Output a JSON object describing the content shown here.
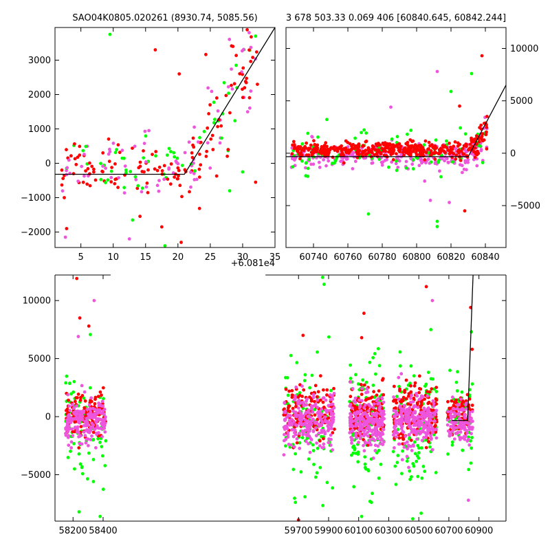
{
  "chart_data": [
    {
      "type": "scatter",
      "title": "SAO04K0805.020261 (8930.74, 5085.56)",
      "x_offset_label": "+6.081e4",
      "xlim": [
        1,
        35
      ],
      "ylim": [
        -2450,
        3950
      ],
      "x_ticks": [
        "5",
        "10",
        "15",
        "20",
        "25",
        "30",
        "35"
      ],
      "y_ticks": [
        "−2000",
        "−1000",
        "0",
        "1000",
        "2000",
        "3000"
      ],
      "y_axis_side": "left",
      "series_colors": {
        "red": "#ff0000",
        "green": "#00ff00",
        "pink": "#ee55dd"
      },
      "model_line": {
        "x": [
          1,
          21,
          35
        ],
        "y": [
          -320,
          -320,
          3950
        ]
      },
      "highlight_points": [
        {
          "x": 9.5,
          "y": 3750,
          "s": "green"
        },
        {
          "x": 16.5,
          "y": 3300,
          "s": "red"
        },
        {
          "x": 20.2,
          "y": 2600,
          "s": "red"
        },
        {
          "x": 31,
          "y": 3800,
          "s": "pink"
        },
        {
          "x": 32,
          "y": 3700,
          "s": "green"
        },
        {
          "x": 28.5,
          "y": 3400,
          "s": "red"
        },
        {
          "x": 26,
          "y": 1900,
          "s": "red"
        },
        {
          "x": 30,
          "y": -250,
          "s": "green"
        },
        {
          "x": 28,
          "y": -800,
          "s": "green"
        },
        {
          "x": 32,
          "y": -550,
          "s": "red"
        },
        {
          "x": 20.5,
          "y": -2300,
          "s": "red"
        },
        {
          "x": 18,
          "y": -2400,
          "s": "green"
        },
        {
          "x": 2.6,
          "y": -2150,
          "s": "pink"
        },
        {
          "x": 2.8,
          "y": -1900,
          "s": "red"
        },
        {
          "x": 12.5,
          "y": -2200,
          "s": "pink"
        },
        {
          "x": 17.5,
          "y": -1850,
          "s": "red"
        },
        {
          "x": 13,
          "y": -1650,
          "s": "green"
        }
      ]
    },
    {
      "type": "scatter",
      "title": "3 678 503.33 0.069 406 [60840.645, 60842.244]",
      "xlim": [
        60724,
        60852
      ],
      "ylim": [
        -9000,
        12000
      ],
      "x_ticks": [
        "60740",
        "60760",
        "60780",
        "60800",
        "60820",
        "60840"
      ],
      "y_ticks": [
        "−5000",
        "0",
        "5000",
        "10000"
      ],
      "y_axis_side": "right",
      "model_line": {
        "x": [
          60724,
          60830,
          60852
        ],
        "y": [
          -330,
          -330,
          6500
        ]
      },
      "highlight_points": [
        {
          "x": 60838,
          "y": 9300,
          "s": "red"
        },
        {
          "x": 60812,
          "y": 7800,
          "s": "pink"
        },
        {
          "x": 60832,
          "y": 7600,
          "s": "green"
        },
        {
          "x": 60820,
          "y": 5900,
          "s": "green"
        },
        {
          "x": 60825,
          "y": 4500,
          "s": "red"
        },
        {
          "x": 60785,
          "y": 4400,
          "s": "pink"
        },
        {
          "x": 60812,
          "y": -6500,
          "s": "green"
        },
        {
          "x": 60812,
          "y": -7000,
          "s": "green"
        },
        {
          "x": 60772,
          "y": -5800,
          "s": "green"
        },
        {
          "x": 60808,
          "y": -4500,
          "s": "pink"
        },
        {
          "x": 60828,
          "y": -5500,
          "s": "red"
        },
        {
          "x": 60819,
          "y": -4700,
          "s": "pink"
        }
      ]
    },
    {
      "type": "scatter",
      "xlim": [
        58080,
        61080
      ],
      "ylim": [
        -9000,
        12200
      ],
      "x_ticks": [
        "58200",
        "58400",
        "59700",
        "59900",
        "60100",
        "60300",
        "60500",
        "60700",
        "60900"
      ],
      "y_ticks": [
        "−5000",
        "0",
        "5000",
        "10000"
      ],
      "y_axis_side": "left",
      "segments": [
        {
          "x0": 58150,
          "x1": 58420
        },
        {
          "x0": 59600,
          "x1": 59940
        },
        {
          "x0": 60040,
          "x1": 60270
        },
        {
          "x0": 60330,
          "x1": 60620
        },
        {
          "x0": 60690,
          "x1": 60880
        }
      ],
      "clusters": [
        {
          "x0": 58150,
          "x1": 58420,
          "n": 240,
          "spread": 1700
        },
        {
          "x0": 59600,
          "x1": 59940,
          "n": 290,
          "spread": 2000
        },
        {
          "x0": 60040,
          "x1": 60270,
          "n": 290,
          "spread": 2100
        },
        {
          "x0": 60330,
          "x1": 60620,
          "n": 290,
          "spread": 2100
        },
        {
          "x0": 60690,
          "x1": 60860,
          "n": 140,
          "spread": 1500
        }
      ],
      "model_line": {
        "x": [
          60720,
          60825,
          60861
        ],
        "y": [
          -330,
          -330,
          12200
        ]
      },
      "highlight_points": [
        {
          "x": 58225,
          "y": 11900,
          "s": "red"
        },
        {
          "x": 58245,
          "y": 8500,
          "s": "red"
        },
        {
          "x": 58305,
          "y": 7800,
          "s": "red"
        },
        {
          "x": 58340,
          "y": 10000,
          "s": "pink"
        },
        {
          "x": 58235,
          "y": 6900,
          "s": "pink"
        },
        {
          "x": 59870,
          "y": 11400,
          "s": "green"
        },
        {
          "x": 59860,
          "y": 12000,
          "s": "green"
        },
        {
          "x": 59730,
          "y": 7000,
          "s": "red"
        },
        {
          "x": 60135,
          "y": 8900,
          "s": "red"
        },
        {
          "x": 60120,
          "y": 6800,
          "s": "red"
        },
        {
          "x": 60550,
          "y": 11200,
          "s": "red"
        },
        {
          "x": 60590,
          "y": 10000,
          "s": "pink"
        },
        {
          "x": 60580,
          "y": 7500,
          "s": "green"
        },
        {
          "x": 60845,
          "y": 9400,
          "s": "red"
        },
        {
          "x": 60850,
          "y": 7300,
          "s": "green"
        },
        {
          "x": 60855,
          "y": 5800,
          "s": "red"
        },
        {
          "x": 58240,
          "y": -8200,
          "s": "green"
        },
        {
          "x": 58380,
          "y": -8600,
          "s": "green"
        },
        {
          "x": 59700,
          "y": -8900,
          "s": "red"
        },
        {
          "x": 60120,
          "y": -8600,
          "s": "green"
        },
        {
          "x": 60460,
          "y": -8800,
          "s": "green"
        },
        {
          "x": 60830,
          "y": -7200,
          "s": "pink"
        }
      ]
    }
  ]
}
